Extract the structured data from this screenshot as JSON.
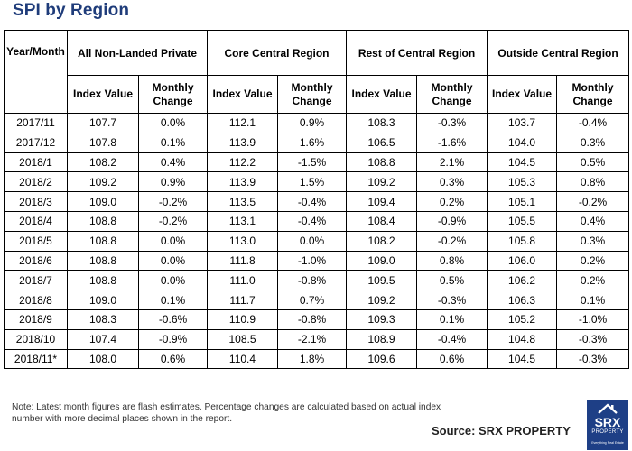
{
  "title": "SPI by Region",
  "table": {
    "year_month_header": "Year/Month",
    "groups": [
      "All Non-Landed Private",
      "Core Central Region",
      "Rest of Central Region",
      "Outside Central Region"
    ],
    "sub_headers": {
      "index": "Index Value",
      "change": "Monthly Change"
    },
    "rows": [
      {
        "month": "2017/11",
        "v": [
          "107.7",
          "0.0%",
          "112.1",
          "0.9%",
          "108.3",
          "-0.3%",
          "103.7",
          "-0.4%"
        ]
      },
      {
        "month": "2017/12",
        "v": [
          "107.8",
          "0.1%",
          "113.9",
          "1.6%",
          "106.5",
          "-1.6%",
          "104.0",
          "0.3%"
        ]
      },
      {
        "month": "2018/1",
        "v": [
          "108.2",
          "0.4%",
          "112.2",
          "-1.5%",
          "108.8",
          "2.1%",
          "104.5",
          "0.5%"
        ]
      },
      {
        "month": "2018/2",
        "v": [
          "109.2",
          "0.9%",
          "113.9",
          "1.5%",
          "109.2",
          "0.3%",
          "105.3",
          "0.8%"
        ]
      },
      {
        "month": "2018/3",
        "v": [
          "109.0",
          "-0.2%",
          "113.5",
          "-0.4%",
          "109.4",
          "0.2%",
          "105.1",
          "-0.2%"
        ]
      },
      {
        "month": "2018/4",
        "v": [
          "108.8",
          "-0.2%",
          "113.1",
          "-0.4%",
          "108.4",
          "-0.9%",
          "105.5",
          "0.4%"
        ]
      },
      {
        "month": "2018/5",
        "v": [
          "108.8",
          "0.0%",
          "113.0",
          "0.0%",
          "108.2",
          "-0.2%",
          "105.8",
          "0.3%"
        ]
      },
      {
        "month": "2018/6",
        "v": [
          "108.8",
          "0.0%",
          "111.8",
          "-1.0%",
          "109.0",
          "0.8%",
          "106.0",
          "0.2%"
        ]
      },
      {
        "month": "2018/7",
        "v": [
          "108.8",
          "0.0%",
          "111.0",
          "-0.8%",
          "109.5",
          "0.5%",
          "106.2",
          "0.2%"
        ]
      },
      {
        "month": "2018/8",
        "v": [
          "109.0",
          "0.1%",
          "111.7",
          "0.7%",
          "109.2",
          "-0.3%",
          "106.3",
          "0.1%"
        ]
      },
      {
        "month": "2018/9",
        "v": [
          "108.3",
          "-0.6%",
          "110.9",
          "-0.8%",
          "109.3",
          "0.1%",
          "105.2",
          "-1.0%"
        ]
      },
      {
        "month": "2018/10",
        "v": [
          "107.4",
          "-0.9%",
          "108.5",
          "-2.1%",
          "108.9",
          "-0.4%",
          "104.8",
          "-0.3%"
        ]
      },
      {
        "month": "2018/11*",
        "v": [
          "108.0",
          "0.6%",
          "110.4",
          "1.8%",
          "109.6",
          "0.6%",
          "104.5",
          "-0.3%"
        ]
      }
    ]
  },
  "note": "Note: Latest month figures are flash estimates. Percentage changes are calculated based on actual index number with more decimal places shown in the report.",
  "source": "Source:  SRX PROPERTY",
  "logo": {
    "line1": "SRX",
    "line2": "PROPERTY",
    "line3": "Everything Real Estate"
  },
  "colors": {
    "title": "#1f3c7a",
    "logo_bg": "#1e3f86"
  }
}
